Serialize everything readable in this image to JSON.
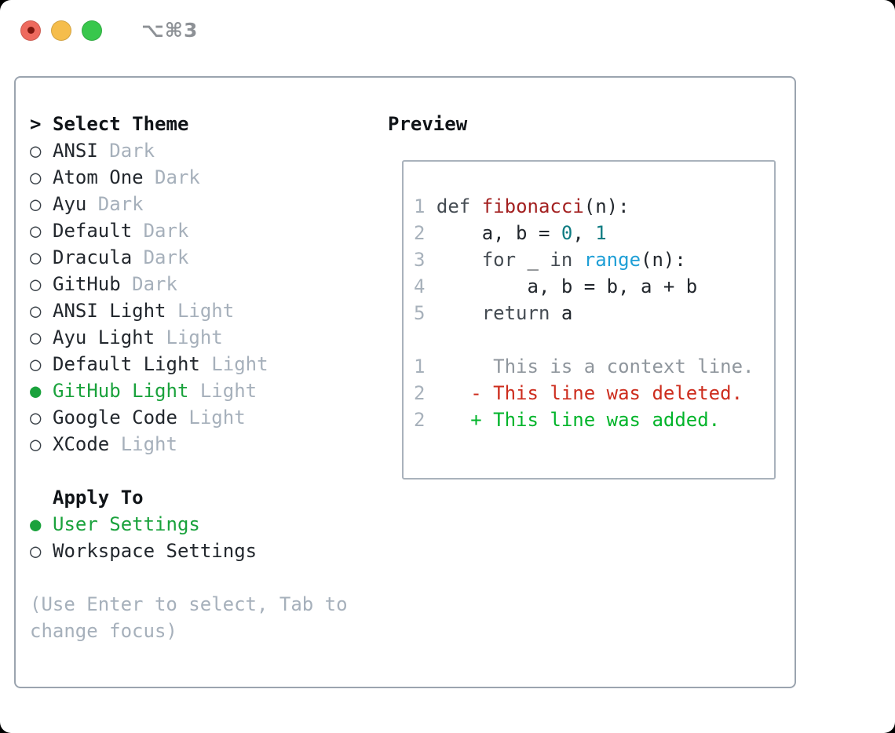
{
  "window": {
    "title": "⌥⌘3"
  },
  "icons": {
    "radio_unselected": "○",
    "radio_selected": "●"
  },
  "theme_list": {
    "prompt": ">",
    "header": "Select Theme",
    "themes": [
      {
        "name": "ANSI",
        "variant": "Dark",
        "selected": false
      },
      {
        "name": "Atom One",
        "variant": "Dark",
        "selected": false
      },
      {
        "name": "Ayu",
        "variant": "Dark",
        "selected": false
      },
      {
        "name": "Default",
        "variant": "Dark",
        "selected": false
      },
      {
        "name": "Dracula",
        "variant": "Dark",
        "selected": false
      },
      {
        "name": "GitHub",
        "variant": "Dark",
        "selected": false
      },
      {
        "name": "ANSI Light",
        "variant": "Light",
        "selected": false
      },
      {
        "name": "Ayu Light",
        "variant": "Light",
        "selected": false
      },
      {
        "name": "Default Light",
        "variant": "Light",
        "selected": false
      },
      {
        "name": "GitHub Light",
        "variant": "Light",
        "selected": true
      },
      {
        "name": "Google Code",
        "variant": "Light",
        "selected": false
      },
      {
        "name": "XCode",
        "variant": "Light",
        "selected": false
      }
    ]
  },
  "apply_to": {
    "header": "Apply To",
    "options": [
      {
        "label": "User Settings",
        "selected": true
      },
      {
        "label": "Workspace Settings",
        "selected": false
      }
    ]
  },
  "hint_lines": [
    "(Use Enter to select, Tab to",
    "change focus)"
  ],
  "preview": {
    "title": "Preview",
    "lines": [
      {
        "tokens": [
          [
            "1",
            "ln"
          ],
          [
            " ",
            "plain"
          ],
          [
            "def",
            "kw"
          ],
          [
            " ",
            "plain"
          ],
          [
            "fibonacci",
            "fn"
          ],
          [
            "(n):",
            "plain"
          ]
        ]
      },
      {
        "tokens": [
          [
            "2",
            "ln"
          ],
          [
            "     ",
            "plain"
          ],
          [
            "a, b = ",
            "plain"
          ],
          [
            "0",
            "num"
          ],
          [
            ", ",
            "plain"
          ],
          [
            "1",
            "num"
          ]
        ]
      },
      {
        "tokens": [
          [
            "3",
            "ln"
          ],
          [
            "     ",
            "plain"
          ],
          [
            "for",
            "kw"
          ],
          [
            " _ ",
            "plain"
          ],
          [
            "in",
            "kw"
          ],
          [
            " ",
            "plain"
          ],
          [
            "range",
            "sup"
          ],
          [
            "(n):",
            "plain"
          ]
        ]
      },
      {
        "tokens": [
          [
            "4",
            "ln"
          ],
          [
            "         ",
            "plain"
          ],
          [
            "a, b = b, a + b",
            "plain"
          ]
        ]
      },
      {
        "tokens": [
          [
            "5",
            "ln"
          ],
          [
            "     ",
            "plain"
          ],
          [
            "return",
            "kw"
          ],
          [
            " a",
            "plain"
          ]
        ]
      },
      {
        "tokens": []
      },
      {
        "tokens": [
          [
            "1",
            "ln"
          ],
          [
            "      ",
            "plain"
          ],
          [
            "This is a context line.",
            "ctx"
          ]
        ]
      },
      {
        "tokens": [
          [
            "2",
            "ln"
          ],
          [
            "    ",
            "plain"
          ],
          [
            "- This line was deleted.",
            "del"
          ]
        ]
      },
      {
        "tokens": [
          [
            "2",
            "ln"
          ],
          [
            "    ",
            "plain"
          ],
          [
            "+ This line was added.",
            "add"
          ]
        ]
      }
    ]
  },
  "colors": {
    "selected_green": "#1aa23c",
    "added_green": "#00b42a",
    "deleted_red": "#cd2d1e",
    "function_red": "#a32020",
    "number_teal": "#0f7c82",
    "builtin_blue": "#1f9fd6",
    "text_dark": "#22272d",
    "muted_gray": "#a6b0bb",
    "context_gray": "#8f969d",
    "line_number_gray": "#a7b1bb",
    "panel_border": "#9ba4af",
    "traffic_red": "#ee6a5e",
    "traffic_yellow": "#f5bd4b",
    "traffic_green": "#38c74c"
  }
}
